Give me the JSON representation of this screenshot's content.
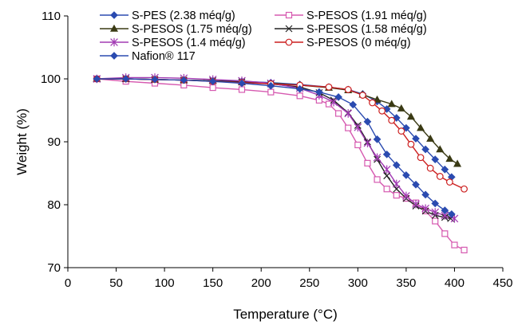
{
  "chart_data": {
    "type": "line",
    "title": "",
    "xlabel": "Temperature (°C)",
    "ylabel": "Weight (%)",
    "xlim": [
      0,
      450
    ],
    "ylim": [
      70,
      110
    ],
    "xticks": [
      0,
      50,
      100,
      150,
      200,
      250,
      300,
      350,
      400,
      450
    ],
    "yticks": [
      70,
      80,
      90,
      100,
      110
    ],
    "grid": false,
    "legend_position": "top",
    "series": [
      {
        "name": "S-PES (2.38 méq/g)",
        "color": "#2b4bb0",
        "marker": "diamond",
        "points": [
          [
            30,
            100
          ],
          [
            60,
            100
          ],
          [
            90,
            99.9
          ],
          [
            120,
            99.8
          ],
          [
            150,
            99.7
          ],
          [
            180,
            99.6
          ],
          [
            210,
            99.4
          ],
          [
            240,
            99.1
          ],
          [
            270,
            98.7
          ],
          [
            290,
            98.3
          ],
          [
            305,
            97.6
          ],
          [
            320,
            96.4
          ],
          [
            330,
            95.2
          ],
          [
            340,
            93.8
          ],
          [
            350,
            92.2
          ],
          [
            360,
            90.5
          ],
          [
            370,
            88.8
          ],
          [
            380,
            87.2
          ],
          [
            390,
            85.6
          ],
          [
            397,
            84.4
          ]
        ]
      },
      {
        "name": "S-PESOS (1.91 méq/g)",
        "color": "#d65ab0",
        "marker": "square-open",
        "points": [
          [
            30,
            100
          ],
          [
            60,
            99.6
          ],
          [
            90,
            99.3
          ],
          [
            120,
            99
          ],
          [
            150,
            98.6
          ],
          [
            180,
            98.3
          ],
          [
            210,
            97.9
          ],
          [
            240,
            97.3
          ],
          [
            260,
            96.6
          ],
          [
            270,
            96
          ],
          [
            280,
            94.5
          ],
          [
            290,
            92.2
          ],
          [
            300,
            89.5
          ],
          [
            310,
            86.6
          ],
          [
            320,
            84
          ],
          [
            330,
            82.5
          ],
          [
            340,
            81.5
          ],
          [
            350,
            81
          ],
          [
            360,
            80.3
          ],
          [
            370,
            79
          ],
          [
            380,
            77.4
          ],
          [
            390,
            75.4
          ],
          [
            400,
            73.6
          ],
          [
            410,
            72.8
          ]
        ]
      },
      {
        "name": "S-PESOS (1.75 méq/g)",
        "color": "#3a3a14",
        "marker": "triangle",
        "points": [
          [
            30,
            100
          ],
          [
            60,
            100
          ],
          [
            90,
            99.9
          ],
          [
            120,
            99.8
          ],
          [
            150,
            99.7
          ],
          [
            180,
            99.5
          ],
          [
            210,
            99.3
          ],
          [
            240,
            99
          ],
          [
            270,
            98.6
          ],
          [
            290,
            98.2
          ],
          [
            305,
            97.5
          ],
          [
            320,
            96.7
          ],
          [
            335,
            96
          ],
          [
            345,
            95.3
          ],
          [
            355,
            94
          ],
          [
            365,
            92.2
          ],
          [
            375,
            90.5
          ],
          [
            385,
            88.8
          ],
          [
            395,
            87.3
          ],
          [
            403,
            86.5
          ]
        ]
      },
      {
        "name": "S-PESOS (1.58 méq/g)",
        "color": "#222222",
        "marker": "x",
        "points": [
          [
            30,
            100
          ],
          [
            60,
            100
          ],
          [
            90,
            99.9
          ],
          [
            120,
            99.8
          ],
          [
            150,
            99.7
          ],
          [
            180,
            99.5
          ],
          [
            210,
            99.2
          ],
          [
            240,
            98.7
          ],
          [
            260,
            97.8
          ],
          [
            275,
            96.6
          ],
          [
            290,
            94.6
          ],
          [
            300,
            92.6
          ],
          [
            310,
            90
          ],
          [
            320,
            87.2
          ],
          [
            330,
            84.6
          ],
          [
            340,
            82.5
          ],
          [
            350,
            81
          ],
          [
            360,
            79.8
          ],
          [
            370,
            79
          ],
          [
            380,
            78.3
          ],
          [
            390,
            78
          ],
          [
            396,
            77.8
          ]
        ]
      },
      {
        "name": "S-PESOS (1.4 méq/g)",
        "color": "#a23ab3",
        "marker": "asterisk",
        "points": [
          [
            30,
            100
          ],
          [
            60,
            100.2
          ],
          [
            90,
            100.2
          ],
          [
            120,
            100.1
          ],
          [
            150,
            99.9
          ],
          [
            180,
            99.7
          ],
          [
            210,
            99.3
          ],
          [
            240,
            98.5
          ],
          [
            260,
            97.4
          ],
          [
            275,
            96.3
          ],
          [
            290,
            94.5
          ],
          [
            300,
            92.3
          ],
          [
            310,
            89.8
          ],
          [
            320,
            87.5
          ],
          [
            330,
            85.6
          ],
          [
            340,
            83.3
          ],
          [
            350,
            81.4
          ],
          [
            360,
            80.1
          ],
          [
            370,
            79.4
          ],
          [
            380,
            78.8
          ],
          [
            390,
            78.3
          ],
          [
            400,
            77.8
          ]
        ]
      },
      {
        "name": "S-PESOS (0 méq/g)",
        "color": "#cc1f1f",
        "marker": "circle-open",
        "points": [
          [
            30,
            100
          ],
          [
            60,
            100
          ],
          [
            90,
            99.9
          ],
          [
            120,
            99.8
          ],
          [
            150,
            99.6
          ],
          [
            180,
            99.4
          ],
          [
            210,
            99.2
          ],
          [
            240,
            99
          ],
          [
            270,
            98.7
          ],
          [
            290,
            98.3
          ],
          [
            305,
            97.4
          ],
          [
            315,
            96.2
          ],
          [
            325,
            94.9
          ],
          [
            335,
            93.4
          ],
          [
            345,
            91.7
          ],
          [
            355,
            89.6
          ],
          [
            365,
            87.5
          ],
          [
            375,
            85.8
          ],
          [
            385,
            84.5
          ],
          [
            395,
            83.6
          ],
          [
            410,
            82.5
          ]
        ]
      },
      {
        "name": "Nafion® 117",
        "color": "#2b4bb0",
        "marker": "diamond",
        "points": [
          [
            30,
            100
          ],
          [
            60,
            100
          ],
          [
            90,
            99.9
          ],
          [
            120,
            99.8
          ],
          [
            150,
            99.6
          ],
          [
            180,
            99.3
          ],
          [
            210,
            98.9
          ],
          [
            240,
            98.4
          ],
          [
            260,
            97.9
          ],
          [
            280,
            97.1
          ],
          [
            295,
            95.9
          ],
          [
            310,
            93.2
          ],
          [
            320,
            90.4
          ],
          [
            330,
            88
          ],
          [
            340,
            86.3
          ],
          [
            350,
            84.7
          ],
          [
            360,
            83.2
          ],
          [
            370,
            81.6
          ],
          [
            380,
            80.2
          ],
          [
            390,
            79.1
          ],
          [
            397,
            78.5
          ]
        ]
      }
    ]
  }
}
